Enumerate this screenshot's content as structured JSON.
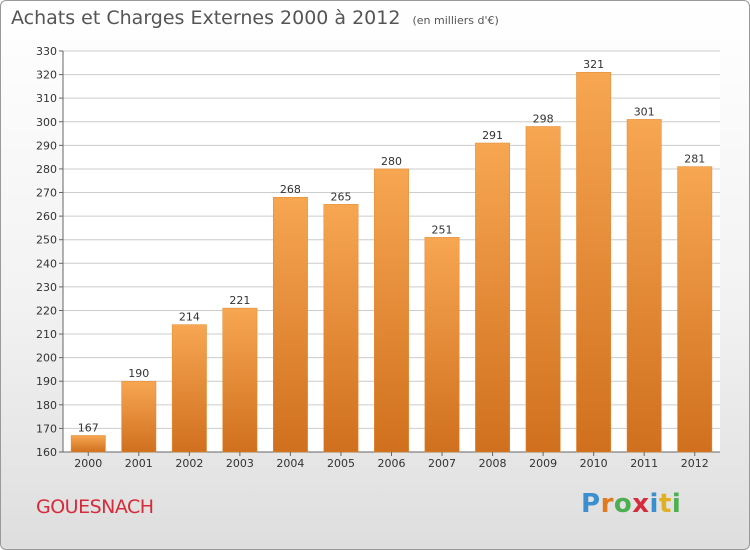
{
  "title": "Achats et Charges Externes 2000 à 2012",
  "subtitle": "(en milliers d'€)",
  "commune": "GOUESNACH",
  "logo": {
    "letters": [
      "P",
      "r",
      "o",
      "x",
      "i",
      "t",
      "i"
    ],
    "colors": [
      "#3a8fd0",
      "#e07a20",
      "#4caf50",
      "#d62b3a",
      "#3a8fd0",
      "#e0b020",
      "#4caf50"
    ]
  },
  "colors": {
    "bar_top": "#f7a652",
    "bar_bottom": "#d0701e",
    "grid": "#cccccc",
    "axis": "#666666"
  },
  "chart_data": {
    "type": "bar",
    "categories": [
      "2000",
      "2001",
      "2002",
      "2003",
      "2004",
      "2005",
      "2006",
      "2007",
      "2008",
      "2009",
      "2010",
      "2011",
      "2012"
    ],
    "values": [
      167,
      190,
      214,
      221,
      268,
      265,
      280,
      251,
      291,
      298,
      321,
      301,
      281
    ],
    "yticks": [
      160,
      170,
      180,
      190,
      200,
      210,
      220,
      230,
      240,
      250,
      260,
      270,
      280,
      290,
      300,
      310,
      320,
      330
    ],
    "ylim": [
      160,
      330
    ],
    "grid": true
  }
}
